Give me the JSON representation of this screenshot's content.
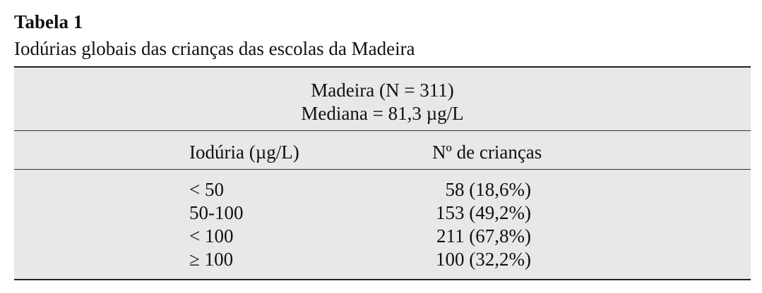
{
  "header": {
    "title": "Tabela 1",
    "subtitle": "Iodúrias globais das crianças das escolas da Madeira"
  },
  "table": {
    "caption": [
      "Madeira (N = 311)",
      "Mediana = 81,3 µg/L"
    ],
    "columns": [
      "Iodúria (µg/L)",
      "Nº de crianças"
    ],
    "rows": [
      [
        "< 50",
        "58 (18,6%)"
      ],
      [
        "50-100",
        "153 (49,2%)"
      ],
      [
        "< 100",
        "211 (67,8%)"
      ],
      [
        "≥ 100",
        "100 (32,2%)"
      ]
    ]
  }
}
